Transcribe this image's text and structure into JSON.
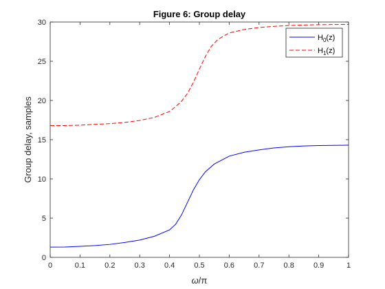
{
  "chart_data": {
    "type": "line",
    "title": "Figure 6: Group delay",
    "xlabel_symbol": "ω",
    "xlabel_rest": "/π",
    "ylabel": "Group delay, samples",
    "xlim": [
      0,
      1
    ],
    "ylim": [
      0,
      30
    ],
    "xticks": [
      "0",
      "0.1",
      "0.2",
      "0.3",
      "0.4",
      "0.5",
      "0.6",
      "0.7",
      "0.8",
      "0.9",
      "1"
    ],
    "yticks": [
      "0",
      "5",
      "10",
      "15",
      "20",
      "25",
      "30"
    ],
    "grid": false,
    "legend_position": "top-right",
    "series": [
      {
        "name": "H0(z)",
        "legend_main": "H",
        "legend_sub": "0",
        "legend_tail": "(z)",
        "color": "#0000ff",
        "dash": "solid",
        "x": [
          0,
          0.05,
          0.1,
          0.15,
          0.2,
          0.25,
          0.3,
          0.35,
          0.4,
          0.42,
          0.44,
          0.46,
          0.48,
          0.5,
          0.52,
          0.55,
          0.6,
          0.65,
          0.7,
          0.75,
          0.8,
          0.85,
          0.9,
          0.95,
          1.0
        ],
        "y": [
          1.3,
          1.32,
          1.4,
          1.5,
          1.65,
          1.9,
          2.2,
          2.7,
          3.5,
          4.2,
          5.4,
          7.0,
          8.6,
          9.9,
          10.9,
          11.9,
          12.9,
          13.4,
          13.7,
          13.95,
          14.1,
          14.2,
          14.25,
          14.28,
          14.3
        ]
      },
      {
        "name": "H1(z)",
        "legend_main": "H",
        "legend_sub": "1",
        "legend_tail": "(z)",
        "color": "#ff0000",
        "dash": "dashed",
        "x": [
          0,
          0.05,
          0.1,
          0.15,
          0.2,
          0.25,
          0.3,
          0.35,
          0.4,
          0.42,
          0.44,
          0.46,
          0.48,
          0.5,
          0.52,
          0.54,
          0.56,
          0.58,
          0.6,
          0.65,
          0.7,
          0.75,
          0.8,
          0.85,
          0.9,
          0.95,
          1.0
        ],
        "y": [
          16.8,
          16.8,
          16.85,
          16.95,
          17.05,
          17.2,
          17.45,
          17.85,
          18.6,
          19.2,
          19.9,
          20.9,
          22.3,
          24.0,
          25.6,
          26.9,
          27.7,
          28.2,
          28.6,
          29.05,
          29.3,
          29.45,
          29.55,
          29.62,
          29.66,
          29.68,
          29.7
        ]
      }
    ]
  }
}
